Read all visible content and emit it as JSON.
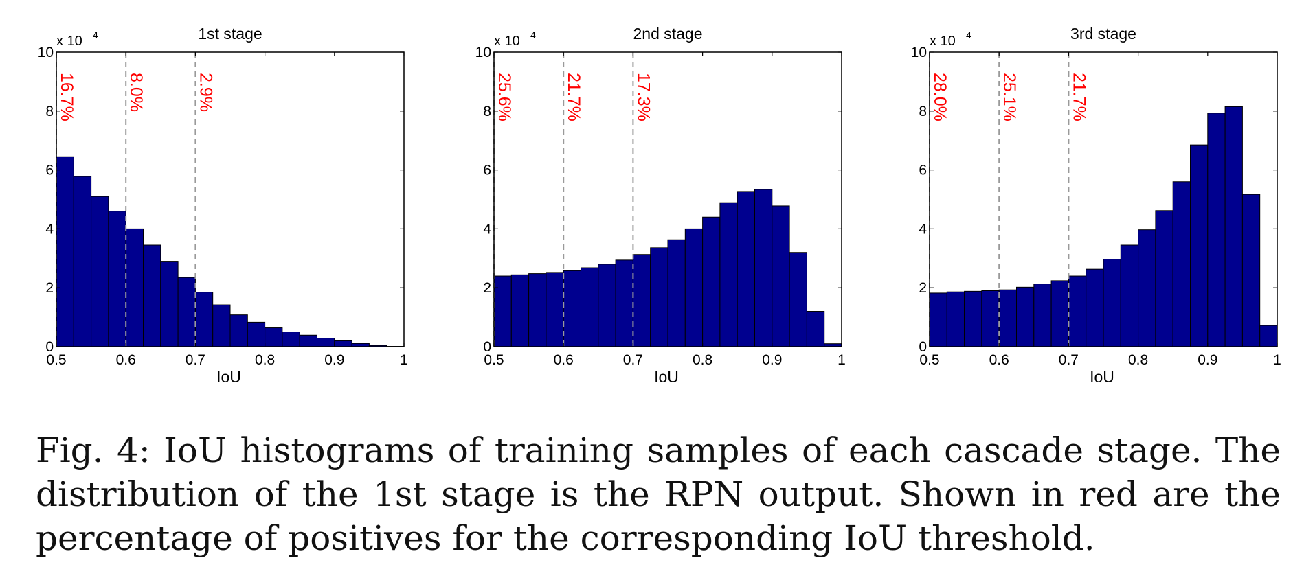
{
  "colors": {
    "bar_fill": "#00008f",
    "bar_stroke": "#000000",
    "threshold_line": "#9a9a9a",
    "annotation": "#ff0000",
    "axis": "#000000",
    "caption_text": "#111111"
  },
  "chart_data": [
    {
      "type": "bar",
      "title": "1st stage",
      "xlabel": "IoU",
      "ylabel": "",
      "y_exponent_label": "x 10",
      "y_exponent_power": "4",
      "xlim": [
        0.5,
        1.0
      ],
      "ylim": [
        0,
        100000
      ],
      "xticks": [
        "0.5",
        "0.6",
        "0.7",
        "0.8",
        "0.9",
        "1"
      ],
      "yticks": [
        "0",
        "2",
        "4",
        "6",
        "8",
        "10"
      ],
      "bin_width": 0.025,
      "bin_starts": [
        0.5,
        0.525,
        0.55,
        0.575,
        0.6,
        0.625,
        0.65,
        0.675,
        0.7,
        0.725,
        0.75,
        0.775,
        0.8,
        0.825,
        0.85,
        0.875,
        0.9,
        0.925,
        0.95,
        0.975
      ],
      "values": [
        64500,
        57800,
        51000,
        46000,
        40000,
        34500,
        29000,
        23500,
        18500,
        14200,
        10800,
        8300,
        6400,
        5000,
        3900,
        2900,
        2000,
        1100,
        400,
        100
      ],
      "thresholds": [
        {
          "iou": 0.5,
          "label": "16.7%"
        },
        {
          "iou": 0.6,
          "label": "8.0%"
        },
        {
          "iou": 0.7,
          "label": "2.9%"
        }
      ]
    },
    {
      "type": "bar",
      "title": "2nd stage",
      "xlabel": "IoU",
      "ylabel": "",
      "y_exponent_label": "x 10",
      "y_exponent_power": "4",
      "xlim": [
        0.5,
        1.0
      ],
      "ylim": [
        0,
        100000
      ],
      "xticks": [
        "0.5",
        "0.6",
        "0.7",
        "0.8",
        "0.9",
        "1"
      ],
      "yticks": [
        "0",
        "2",
        "4",
        "6",
        "8",
        "10"
      ],
      "bin_width": 0.025,
      "bin_starts": [
        0.5,
        0.525,
        0.55,
        0.575,
        0.6,
        0.625,
        0.65,
        0.675,
        0.7,
        0.725,
        0.75,
        0.775,
        0.8,
        0.825,
        0.85,
        0.875,
        0.9,
        0.925,
        0.95,
        0.975
      ],
      "values": [
        24000,
        24400,
        24800,
        25200,
        25800,
        26800,
        28000,
        29400,
        31300,
        33600,
        36300,
        40000,
        44000,
        48900,
        52700,
        53400,
        47800,
        32000,
        12000,
        1000
      ],
      "thresholds": [
        {
          "iou": 0.5,
          "label": "25.6%"
        },
        {
          "iou": 0.6,
          "label": "21.7%"
        },
        {
          "iou": 0.7,
          "label": "17.3%"
        }
      ]
    },
    {
      "type": "bar",
      "title": "3rd stage",
      "xlabel": "IoU",
      "ylabel": "",
      "y_exponent_label": "x 10",
      "y_exponent_power": "4",
      "xlim": [
        0.5,
        1.0
      ],
      "ylim": [
        0,
        100000
      ],
      "xticks": [
        "0.5",
        "0.6",
        "0.7",
        "0.8",
        "0.9",
        "1"
      ],
      "yticks": [
        "0",
        "2",
        "4",
        "6",
        "8",
        "10"
      ],
      "bin_width": 0.025,
      "bin_starts": [
        0.5,
        0.525,
        0.55,
        0.575,
        0.6,
        0.625,
        0.65,
        0.675,
        0.7,
        0.725,
        0.75,
        0.775,
        0.8,
        0.825,
        0.85,
        0.875,
        0.9,
        0.925,
        0.95,
        0.975
      ],
      "values": [
        18200,
        18600,
        18800,
        19000,
        19300,
        20200,
        21300,
        22400,
        24000,
        26300,
        29700,
        34500,
        39700,
        46200,
        56000,
        68500,
        79300,
        81500,
        51700,
        7200
      ],
      "thresholds": [
        {
          "iou": 0.5,
          "label": "28.0%"
        },
        {
          "iou": 0.6,
          "label": "25.1%"
        },
        {
          "iou": 0.7,
          "label": "21.7%"
        }
      ]
    }
  ],
  "caption": {
    "lines": [
      "Fig. 4: IoU histograms of training samples of each cascade stage. The",
      "distribution of the 1st stage is the RPN output. Shown in red are the",
      "percentage of positives for the corresponding IoU threshold."
    ]
  }
}
